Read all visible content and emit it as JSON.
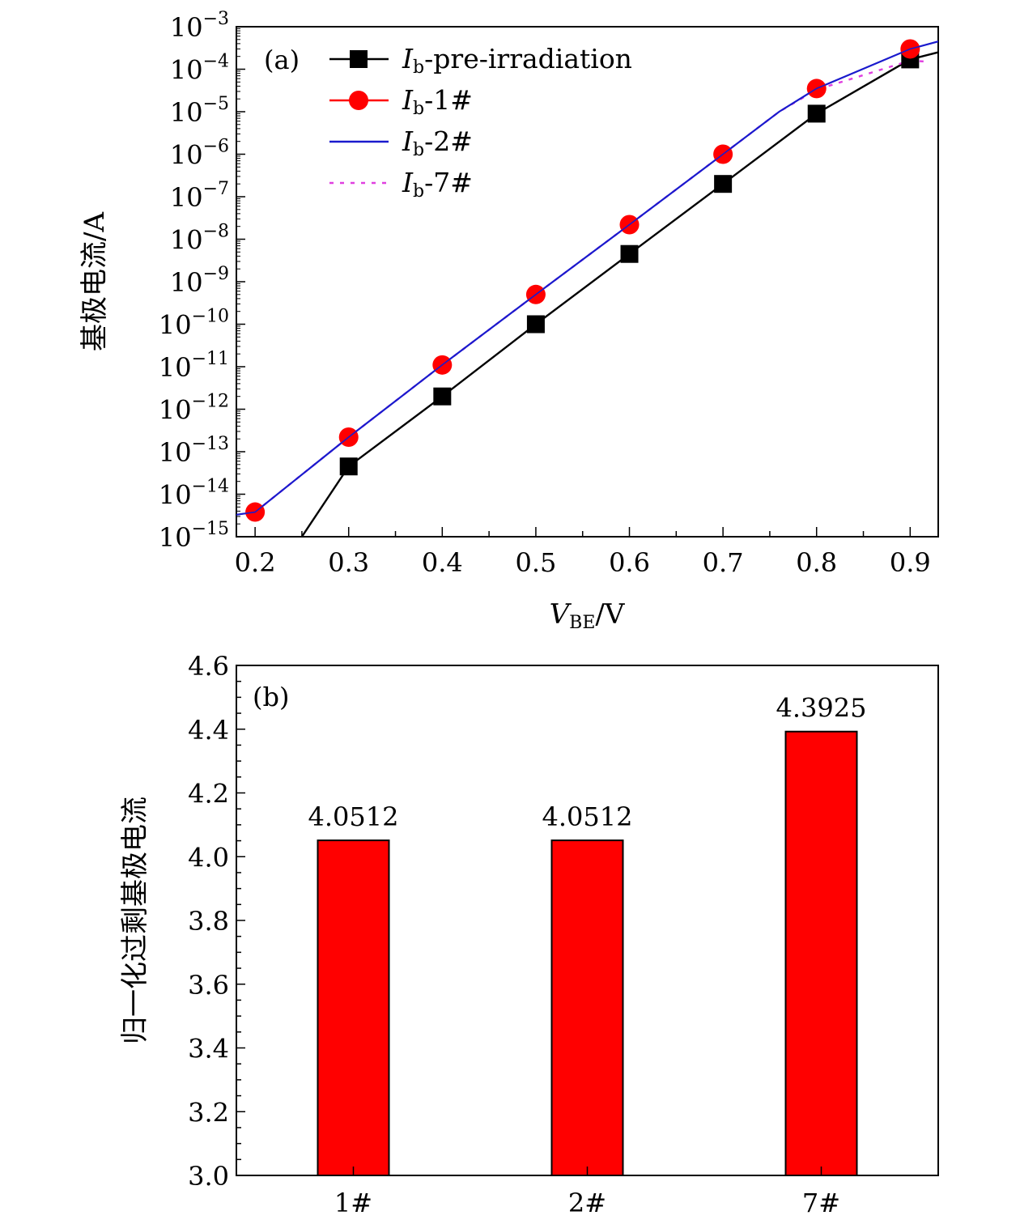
{
  "chart_data": [
    {
      "type": "line",
      "panel_label": "(a)",
      "xlabel": {
        "main": "V",
        "sub": "BE",
        "unit": "/V"
      },
      "ylabel": "基极电流/A",
      "xlim": [
        0.18,
        0.93
      ],
      "ylim": [
        1e-15,
        0.001
      ],
      "yscale": "log",
      "x_ticks": [
        "0.2",
        "0.3",
        "0.4",
        "0.5",
        "0.6",
        "0.7",
        "0.8",
        "0.9"
      ],
      "y_ticks": [
        {
          "v": 0.001,
          "base": "10",
          "exp": "−3"
        },
        {
          "v": 0.0001,
          "base": "10",
          "exp": "−4"
        },
        {
          "v": 1e-05,
          "base": "10",
          "exp": "−5"
        },
        {
          "v": 1e-06,
          "base": "10",
          "exp": "−6"
        },
        {
          "v": 1e-07,
          "base": "10",
          "exp": "−7"
        },
        {
          "v": 1e-08,
          "base": "10",
          "exp": "−8"
        },
        {
          "v": 1e-09,
          "base": "10",
          "exp": "−9"
        },
        {
          "v": 1e-10,
          "base": "10",
          "exp": "−10"
        },
        {
          "v": 1e-11,
          "base": "10",
          "exp": "−11"
        },
        {
          "v": 1e-12,
          "base": "10",
          "exp": "−12"
        },
        {
          "v": 1e-13,
          "base": "10",
          "exp": "−13"
        },
        {
          "v": 1e-14,
          "base": "10",
          "exp": "−14"
        },
        {
          "v": 1e-15,
          "base": "10",
          "exp": "−15"
        }
      ],
      "legend_position": "top-left",
      "series": [
        {
          "name": "pre-irradiation",
          "legend_main": "I",
          "legend_sub": "b",
          "legend_rest": "-pre-irradiation",
          "color": "#000000",
          "marker": "square",
          "line": "solid",
          "x": [
            0.25,
            0.3,
            0.4,
            0.5,
            0.6,
            0.7,
            0.8,
            0.9,
            0.93
          ],
          "y": [
            1e-15,
            4.5e-14,
            2e-12,
            1e-10,
            4.5e-09,
            2e-07,
            9e-06,
            0.00017,
            0.00025
          ],
          "markers_x": [
            0.3,
            0.4,
            0.5,
            0.6,
            0.7,
            0.8,
            0.9
          ],
          "markers_y": [
            4.5e-14,
            2e-12,
            1e-10,
            4.5e-09,
            2e-07,
            9e-06,
            0.00017
          ]
        },
        {
          "name": "1#",
          "legend_main": "I",
          "legend_sub": "b",
          "legend_rest": "-1#",
          "color": "#ff0000",
          "marker": "circle",
          "line": "solid",
          "x": [
            0.2,
            0.3,
            0.4,
            0.5,
            0.6,
            0.7,
            0.8,
            0.9
          ],
          "y": [
            3.8e-15,
            2.2e-13,
            1.1e-11,
            5e-10,
            2.2e-08,
            1e-06,
            3.5e-05,
            0.0003
          ]
        },
        {
          "name": "2#",
          "legend_main": "I",
          "legend_sub": "b",
          "legend_rest": "-2#",
          "color": "#1a1acd",
          "marker": "none",
          "line": "solid",
          "x": [
            0.18,
            0.2,
            0.3,
            0.4,
            0.5,
            0.6,
            0.7,
            0.76,
            0.8,
            0.9,
            0.93
          ],
          "y": [
            3.3e-15,
            3.8e-15,
            2.2e-13,
            1.1e-11,
            5e-10,
            2.2e-08,
            1e-06,
            1e-05,
            3.5e-05,
            0.0003,
            0.00045
          ]
        },
        {
          "name": "7#",
          "legend_main": "I",
          "legend_sub": "b",
          "legend_rest": "-7#",
          "color": "#e040e0",
          "marker": "none",
          "line": "dotted",
          "x": [
            0.2,
            0.3,
            0.4,
            0.5,
            0.6,
            0.7,
            0.76,
            0.8,
            0.9,
            0.92
          ],
          "y": [
            3.8e-15,
            2.2e-13,
            1.1e-11,
            5e-10,
            2.2e-08,
            1e-06,
            1e-05,
            3.3e-05,
            0.00016,
            0.00015
          ]
        }
      ]
    },
    {
      "type": "bar",
      "panel_label": "(b)",
      "ylabel": "归一化过剩基极电流",
      "xlabel": "",
      "categories": [
        "1#",
        "2#",
        "7#"
      ],
      "values": [
        4.0512,
        4.0512,
        4.3925
      ],
      "value_labels": [
        "4.0512",
        "4.0512",
        "4.3925"
      ],
      "ylim": [
        3.0,
        4.6
      ],
      "y_ticks": [
        "3.0",
        "3.2",
        "3.4",
        "3.6",
        "3.8",
        "4.0",
        "4.2",
        "4.4",
        "4.6"
      ],
      "color": "#ff0000"
    }
  ]
}
